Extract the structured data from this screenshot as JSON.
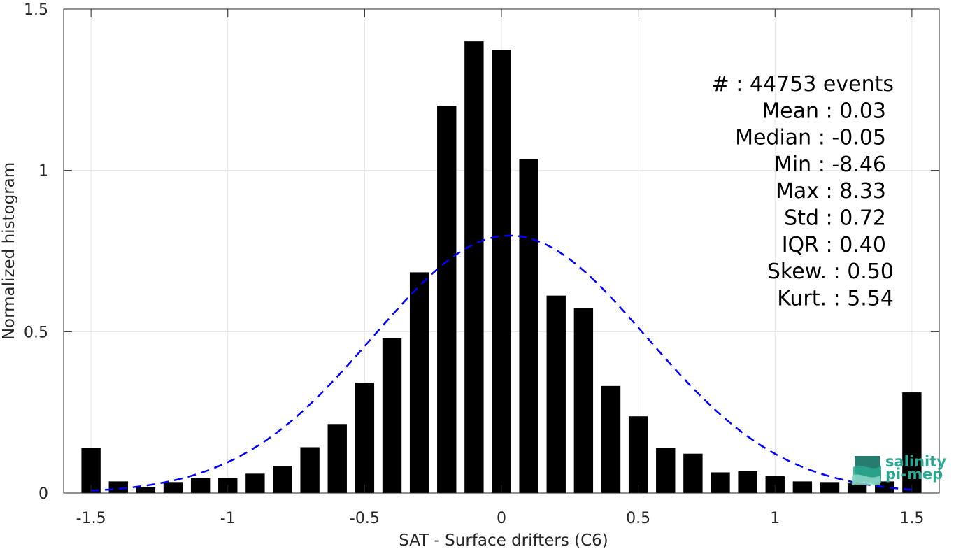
{
  "chart_data": {
    "type": "bar",
    "xlabel": "SAT - Surface drifters (C6)",
    "ylabel": "Normalized histogram",
    "xlim": [
      -1.6,
      1.6
    ],
    "ylim": [
      0,
      1.5
    ],
    "grid": true,
    "x_ticks": [
      -1.5,
      -1,
      -0.5,
      0,
      0.5,
      1,
      1.5
    ],
    "x_tick_labels": [
      "-1.5",
      "-1",
      "-0.5",
      "0",
      "0.5",
      "1",
      "1.5"
    ],
    "y_ticks": [
      0,
      0.5,
      1,
      1.5
    ],
    "y_tick_labels": [
      "0",
      "0.5",
      "1",
      "1.5"
    ],
    "bar_width": 0.07,
    "colors": {
      "bars": "#000000",
      "fit": "#0000ff",
      "grid": "#e6e6e6",
      "axis": "#262626"
    },
    "bins": [
      {
        "x": -1.5,
        "y": 0.14
      },
      {
        "x": -1.4,
        "y": 0.036
      },
      {
        "x": -1.3,
        "y": 0.018
      },
      {
        "x": -1.2,
        "y": 0.034
      },
      {
        "x": -1.1,
        "y": 0.046
      },
      {
        "x": -1.0,
        "y": 0.046
      },
      {
        "x": -0.9,
        "y": 0.06
      },
      {
        "x": -0.8,
        "y": 0.084
      },
      {
        "x": -0.7,
        "y": 0.142
      },
      {
        "x": -0.6,
        "y": 0.214
      },
      {
        "x": -0.5,
        "y": 0.342
      },
      {
        "x": -0.4,
        "y": 0.48
      },
      {
        "x": -0.3,
        "y": 0.684
      },
      {
        "x": -0.2,
        "y": 1.2
      },
      {
        "x": -0.1,
        "y": 1.4
      },
      {
        "x": 0.0,
        "y": 1.374
      },
      {
        "x": 0.1,
        "y": 1.036
      },
      {
        "x": 0.2,
        "y": 0.612
      },
      {
        "x": 0.3,
        "y": 0.574
      },
      {
        "x": 0.4,
        "y": 0.332
      },
      {
        "x": 0.5,
        "y": 0.238
      },
      {
        "x": 0.6,
        "y": 0.14
      },
      {
        "x": 0.7,
        "y": 0.122
      },
      {
        "x": 0.8,
        "y": 0.064
      },
      {
        "x": 0.9,
        "y": 0.068
      },
      {
        "x": 1.0,
        "y": 0.052
      },
      {
        "x": 1.1,
        "y": 0.036
      },
      {
        "x": 1.2,
        "y": 0.034
      },
      {
        "x": 1.3,
        "y": 0.03
      },
      {
        "x": 1.4,
        "y": 0.036
      },
      {
        "x": 1.5,
        "y": 0.312
      }
    ],
    "fit": {
      "type": "gaussian",
      "mean": 0.03,
      "std": 0.5,
      "x_range": [
        -1.5,
        1.5
      ]
    },
    "stats": [
      {
        "label": "#  : 44753 events",
        "value": ""
      },
      {
        "label": "Mean : 0.03",
        "value": ""
      },
      {
        "label": "Median : -0.05",
        "value": ""
      },
      {
        "label": "Min : -8.46",
        "value": ""
      },
      {
        "label": "Max : 8.33",
        "value": ""
      },
      {
        "label": "Std : 0.72",
        "value": ""
      },
      {
        "label": "IQR : 0.40",
        "value": ""
      },
      {
        "label": "Skew. : 0.50",
        "value": ""
      },
      {
        "label": "Kurt. : 5.54",
        "value": ""
      }
    ]
  },
  "logo": {
    "line1": "salinity",
    "line2": "pi-mep",
    "color": "#2aa891"
  }
}
